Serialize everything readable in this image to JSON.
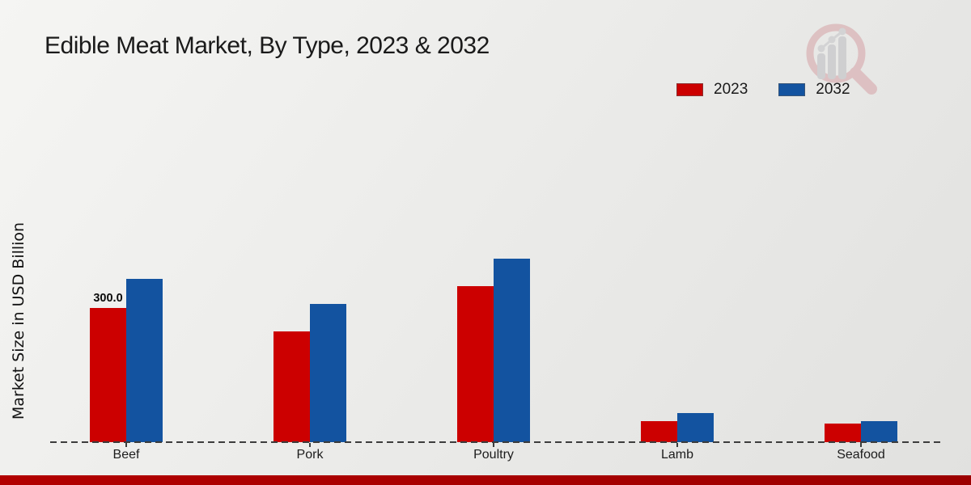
{
  "page": {
    "title": "Edible Meat Market, By Type, 2023 & 2032",
    "ylabel": "Market Size in USD Billion",
    "footer_bar_color": "#b20000",
    "watermark_icon": "magnifier-growth-chart-logo"
  },
  "chart_data": {
    "type": "bar",
    "title": "Edible Meat Market, By Type, 2023 & 2032",
    "ylabel": "Market Size in USD Billion",
    "categories": [
      "Beef",
      "Pork",
      "Poultry",
      "Lamb",
      "Seafood"
    ],
    "series": [
      {
        "name": "2023",
        "color": "#cc0000",
        "values": [
          300.0,
          248,
          349,
          47,
          42
        ]
      },
      {
        "name": "2032",
        "color": "#1353a0",
        "values": [
          365,
          309,
          410,
          65,
          47
        ]
      }
    ],
    "data_labels": [
      {
        "series": "2023",
        "category": "Beef",
        "text": "300.0"
      }
    ],
    "legend_position": "top-right",
    "grid": false,
    "baseline_style": "dashed",
    "ylim": [
      0,
      450
    ]
  }
}
